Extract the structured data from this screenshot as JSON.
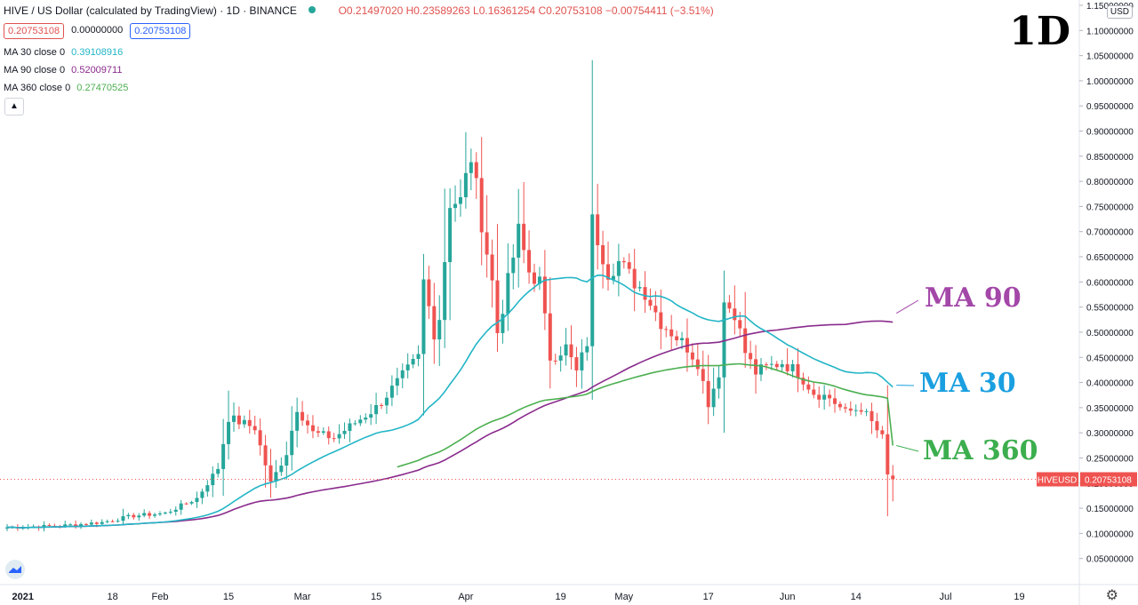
{
  "header": {
    "symbol_title": "HIVE / US Dollar (calculated by TradingView) · 1D · BINANCE",
    "ohlc": "O0.21497020  H0.23589263  L0.16361254  C0.20753108  −0.00754411  (−3.51%)",
    "price_box_1": "0.20753108",
    "price_box_mid": "0.00000000",
    "price_box_2": "0.20753108"
  },
  "indicators": [
    {
      "label": "MA 30 close 0",
      "value": "0.39108916",
      "color": "#22b5c6"
    },
    {
      "label": "MA 90 close 0",
      "value": "0.52009711",
      "color": "#8a2b8c"
    },
    {
      "label": "MA 360 close 0",
      "value": "0.27470525",
      "color": "#4caf50"
    }
  ],
  "timeframe_label": "1D",
  "annotations": {
    "ma90": "MA 90",
    "ma30": "MA 30",
    "ma360": "MA 360"
  },
  "colors": {
    "up": "#26a69a",
    "down": "#ef5350",
    "ma30": "#22b5c6",
    "ma90": "#8a2b8c",
    "ma360": "#4caf50",
    "ann_ma90": "#a347a8",
    "ann_ma30": "#1a9fe0",
    "ann_ma360": "#3cae4e"
  },
  "axis": {
    "currency_label": "USD",
    "current_symbol": "HIVEUSD",
    "current_price": "0.20753108",
    "settings_icon": "gear-icon",
    "logo_icon": "tradingview-logo-icon"
  },
  "chart_data": {
    "type": "candlestick",
    "title": "HIVE / US Dollar (calculated by TradingView) · 1D · BINANCE",
    "ylim": [
      0.0,
      1.15
    ],
    "y_ticks": [
      "0.05000000",
      "0.10000000",
      "0.15000000",
      "0.20000000",
      "0.25000000",
      "0.30000000",
      "0.35000000",
      "0.40000000",
      "0.45000000",
      "0.50000000",
      "0.55000000",
      "0.60000000",
      "0.65000000",
      "0.70000000",
      "0.75000000",
      "0.80000000",
      "0.85000000",
      "0.90000000",
      "0.95000000",
      "1.00000000",
      "1.05000000",
      "1.10000000",
      "1.15000000"
    ],
    "x_ticks": [
      {
        "day": 3,
        "label": "2021",
        "bold": true
      },
      {
        "day": 20,
        "label": "18"
      },
      {
        "day": 29,
        "label": "Feb"
      },
      {
        "day": 42,
        "label": "15"
      },
      {
        "day": 56,
        "label": "Mar"
      },
      {
        "day": 70,
        "label": "15"
      },
      {
        "day": 87,
        "label": "Apr"
      },
      {
        "day": 105,
        "label": "19"
      },
      {
        "day": 117,
        "label": "May"
      },
      {
        "day": 133,
        "label": "17"
      },
      {
        "day": 148,
        "label": "Jun"
      },
      {
        "day": 161,
        "label": "14"
      },
      {
        "day": 178,
        "label": "Jul"
      },
      {
        "day": 192,
        "label": "19"
      }
    ],
    "ohlc_keypoints": [
      [
        0,
        0.112
      ],
      [
        10,
        0.115
      ],
      [
        18,
        0.122
      ],
      [
        24,
        0.135
      ],
      [
        30,
        0.14
      ],
      [
        36,
        0.17
      ],
      [
        40,
        0.23
      ],
      [
        42,
        0.33
      ],
      [
        47,
        0.31
      ],
      [
        50,
        0.2
      ],
      [
        53,
        0.26
      ],
      [
        55,
        0.35
      ],
      [
        58,
        0.3
      ],
      [
        62,
        0.29
      ],
      [
        66,
        0.32
      ],
      [
        70,
        0.35
      ],
      [
        74,
        0.4
      ],
      [
        78,
        0.45
      ],
      [
        79,
        0.6
      ],
      [
        81,
        0.5
      ],
      [
        82,
        0.53
      ],
      [
        84,
        0.76
      ],
      [
        86,
        0.76
      ],
      [
        88,
        0.85
      ],
      [
        90,
        0.72
      ],
      [
        92,
        0.6
      ],
      [
        93,
        0.5
      ],
      [
        95,
        0.6
      ],
      [
        97,
        0.7
      ],
      [
        99,
        0.62
      ],
      [
        101,
        0.6
      ],
      [
        103,
        0.45
      ],
      [
        106,
        0.47
      ],
      [
        108,
        0.42
      ],
      [
        110,
        0.48
      ],
      [
        111,
        0.72
      ],
      [
        114,
        0.62
      ],
      [
        116,
        0.64
      ],
      [
        119,
        0.6
      ],
      [
        121,
        0.58
      ],
      [
        124,
        0.52
      ],
      [
        127,
        0.49
      ],
      [
        129,
        0.47
      ],
      [
        131,
        0.44
      ],
      [
        133,
        0.36
      ],
      [
        135,
        0.42
      ],
      [
        136,
        0.56
      ],
      [
        138,
        0.54
      ],
      [
        140,
        0.46
      ],
      [
        142,
        0.42
      ],
      [
        144,
        0.43
      ],
      [
        147,
        0.44
      ],
      [
        150,
        0.42
      ],
      [
        153,
        0.38
      ],
      [
        156,
        0.37
      ],
      [
        159,
        0.34
      ],
      [
        162,
        0.35
      ],
      [
        164,
        0.32
      ],
      [
        166,
        0.29
      ],
      [
        167,
        0.215
      ],
      [
        168,
        0.208
      ]
    ],
    "last": {
      "open": 0.2149702,
      "high": 0.23589263,
      "low": 0.16361254,
      "close": 0.20753108
    },
    "ma_last": {
      "ma30": 0.39108916,
      "ma90": 0.52009711,
      "ma360": 0.27470525
    },
    "ma90_extend_from_day": 0,
    "ma360_start_day": 74
  }
}
